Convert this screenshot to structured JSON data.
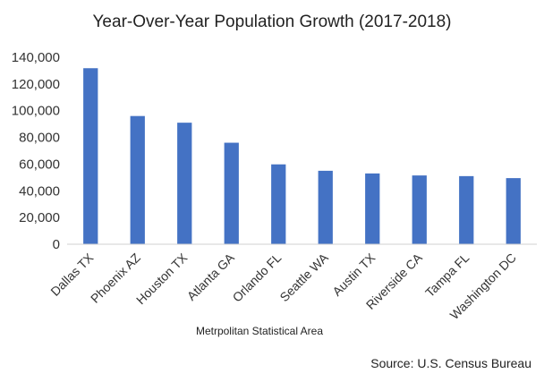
{
  "chart_data": {
    "type": "bar",
    "title": "Year-Over-Year Population Growth (2017-2018)",
    "xlabel": "Metrpolitan Statistical Area",
    "ylabel": "",
    "categories": [
      "Dallas TX",
      "Phoenix AZ",
      "Houston TX",
      "Atlanta GA",
      "Orlando FL",
      "Seattle WA",
      "Austin TX",
      "Riverside CA",
      "Tampa FL",
      "Washington DC"
    ],
    "values": [
      131800,
      96000,
      91000,
      76000,
      59800,
      55000,
      53000,
      51500,
      51000,
      49500
    ],
    "ylim": [
      0,
      140000
    ],
    "yticks": [
      "0",
      "20,000",
      "40,000",
      "60,000",
      "80,000",
      "100,000",
      "120,000",
      "140,000"
    ],
    "grid": false,
    "bar_color": "#4472C4"
  },
  "source": "Source: U.S. Census Bureau"
}
